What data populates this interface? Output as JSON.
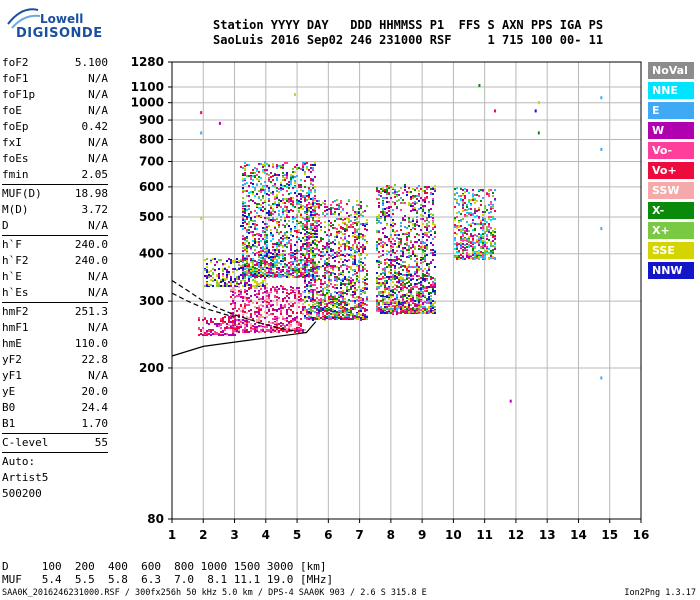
{
  "logo": {
    "top": "Lowell",
    "bottom": "DIGISONDE"
  },
  "header": {
    "line1": "Station YYYY DAY   DDD HHMMSS P1  FFS S AXN PPS IGA PS",
    "line2": "SaoLuis 2016 Sep02 246 231000 RSF     1 715 100 00- 11"
  },
  "params": [
    {
      "k": "foF2",
      "v": "5.100"
    },
    {
      "k": "foF1",
      "v": "N/A"
    },
    {
      "k": "foF1p",
      "v": "N/A"
    },
    {
      "k": "foE",
      "v": "N/A"
    },
    {
      "k": "foEp",
      "v": "0.42"
    },
    {
      "k": "fxI",
      "v": "N/A"
    },
    {
      "k": "foEs",
      "v": "N/A"
    },
    {
      "k": "fmin",
      "v": "2.05"
    },
    {
      "sep": true
    },
    {
      "k": "MUF(D)",
      "v": "18.98"
    },
    {
      "k": "M(D)",
      "v": "3.72"
    },
    {
      "k": "D",
      "v": "N/A"
    },
    {
      "sep": true
    },
    {
      "k": "h`F",
      "v": "240.0"
    },
    {
      "k": "h`F2",
      "v": "240.0"
    },
    {
      "k": "h`E",
      "v": "N/A"
    },
    {
      "k": "h`Es",
      "v": "N/A"
    },
    {
      "sep": true
    },
    {
      "k": "hmF2",
      "v": "251.3"
    },
    {
      "k": "hmF1",
      "v": "N/A"
    },
    {
      "k": "hmE",
      "v": "110.0"
    },
    {
      "k": "yF2",
      "v": "22.8"
    },
    {
      "k": "yF1",
      "v": "N/A"
    },
    {
      "k": "yE",
      "v": "20.0"
    },
    {
      "k": "B0",
      "v": "24.4"
    },
    {
      "k": "B1",
      "v": "1.70"
    },
    {
      "sep": true
    },
    {
      "k": "C-level",
      "v": "55"
    },
    {
      "sep": true
    },
    {
      "text": "Auto:"
    },
    {
      "text": "Artist5"
    },
    {
      "text": "500200"
    }
  ],
  "muf_table": {
    "d_row": "D     100  200  400  600  800 1000 1500 3000 [km]",
    "muf_row": "MUF   5.4  5.5  5.8  6.3  7.0  8.1 11.1 19.0 [MHz]"
  },
  "footer": "SAA0K_2016246231000.RSF / 300fx256h 50 kHz 5.0 km / DPS-4 SAA0K 903 / 2.6 S 315.8 E",
  "version": "Ion2Png 1.3.17",
  "legend": [
    {
      "label": "NoVal",
      "color": "#8c8c8c"
    },
    {
      "label": "NNE",
      "color": "#00e5ff"
    },
    {
      "label": "E",
      "color": "#3fa9f5"
    },
    {
      "label": "W",
      "color": "#b000b0"
    },
    {
      "label": "Vo-",
      "color": "#ff3d9a"
    },
    {
      "label": "Vo+",
      "color": "#ee0a3c"
    },
    {
      "label": "SSW",
      "color": "#f5a9a9"
    },
    {
      "label": "X-",
      "color": "#0a8a0a"
    },
    {
      "label": "X+",
      "color": "#7ac943"
    },
    {
      "label": "SSE",
      "color": "#d4d400"
    },
    {
      "label": "NNW",
      "color": "#1414c8"
    }
  ],
  "chart_data": {
    "type": "scatter",
    "x_ticks": [
      1,
      2,
      3,
      4,
      5,
      6,
      7,
      8,
      9,
      10,
      11,
      12,
      13,
      14,
      15,
      16
    ],
    "y_ticks": [
      80,
      200,
      300,
      400,
      500,
      600,
      700,
      800,
      900,
      1000,
      1100,
      1280
    ],
    "xlim": [
      1,
      16
    ],
    "ylim": [
      80,
      1280
    ],
    "y_scale": "log",
    "grid": true,
    "clusters": [
      {
        "x": [
          1.8,
          3.0
        ],
        "y": [
          245,
          275
        ],
        "colors": [
          "Vo+",
          "Vo-",
          "W"
        ]
      },
      {
        "x": [
          2.8,
          5.2
        ],
        "y": [
          250,
          330
        ],
        "colors": [
          "Vo+",
          "Vo-",
          "W",
          "SSW"
        ]
      },
      {
        "x": [
          2.0,
          4.0
        ],
        "y": [
          330,
          390
        ],
        "colors": [
          "SSE",
          "X+",
          "W",
          "NNW"
        ]
      },
      {
        "x": [
          3.2,
          5.6
        ],
        "y": [
          350,
          700
        ],
        "colors": [
          "W",
          "NNW",
          "Vo-",
          "Vo+",
          "SSE",
          "X+",
          "X-",
          "E",
          "NNE"
        ]
      },
      {
        "x": [
          5.2,
          7.2
        ],
        "y": [
          270,
          560
        ],
        "colors": [
          "W",
          "NNW",
          "Vo-",
          "Vo+",
          "SSE",
          "X+",
          "X-",
          "E"
        ]
      },
      {
        "x": [
          7.5,
          9.4
        ],
        "y": [
          280,
          610
        ],
        "colors": [
          "W",
          "NNW",
          "Vo-",
          "Vo+",
          "SSE",
          "X+",
          "X-",
          "E"
        ]
      },
      {
        "x": [
          10.0,
          11.3
        ],
        "y": [
          390,
          600
        ],
        "colors": [
          "SSE",
          "W",
          "Vo-",
          "Vo+",
          "X+",
          "X-",
          "NNE",
          "E"
        ]
      }
    ],
    "isolated_points": [
      {
        "x": 1.9,
        "y": 950,
        "c": "Vo+"
      },
      {
        "x": 2.5,
        "y": 890,
        "c": "W"
      },
      {
        "x": 10.8,
        "y": 1120,
        "c": "X-"
      },
      {
        "x": 11.3,
        "y": 960,
        "c": "Vo+"
      },
      {
        "x": 12.6,
        "y": 960,
        "c": "NNW"
      },
      {
        "x": 12.7,
        "y": 840,
        "c": "X-"
      },
      {
        "x": 12.7,
        "y": 1010,
        "c": "SSE"
      },
      {
        "x": 11.8,
        "y": 165,
        "c": "W"
      },
      {
        "x": 14.7,
        "y": 1040,
        "c": "E"
      },
      {
        "x": 14.7,
        "y": 760,
        "c": "E"
      },
      {
        "x": 14.7,
        "y": 470,
        "c": "E"
      },
      {
        "x": 14.7,
        "y": 190,
        "c": "E"
      },
      {
        "x": 1.9,
        "y": 840,
        "c": "E"
      },
      {
        "x": 1.9,
        "y": 500,
        "c": "SSE"
      },
      {
        "x": 4.9,
        "y": 1060,
        "c": "SSE"
      }
    ],
    "profile_curves": [
      {
        "style": "solid",
        "points": [
          [
            1.0,
            215
          ],
          [
            2.0,
            228
          ],
          [
            3.0,
            234
          ],
          [
            4.0,
            240
          ],
          [
            5.0,
            246
          ],
          [
            5.3,
            248
          ],
          [
            5.6,
            265
          ]
        ]
      },
      {
        "style": "dashed",
        "points": [
          [
            1.0,
            340
          ],
          [
            1.5,
            320
          ],
          [
            2.0,
            300
          ],
          [
            2.5,
            287
          ],
          [
            3.0,
            276
          ],
          [
            3.5,
            268
          ],
          [
            4.0,
            260
          ],
          [
            4.5,
            254
          ],
          [
            5.0,
            250
          ]
        ]
      },
      {
        "style": "dashed",
        "points": [
          [
            1.0,
            315
          ],
          [
            1.5,
            300
          ],
          [
            2.0,
            288
          ],
          [
            2.5,
            280
          ],
          [
            3.0,
            272
          ]
        ]
      }
    ]
  }
}
